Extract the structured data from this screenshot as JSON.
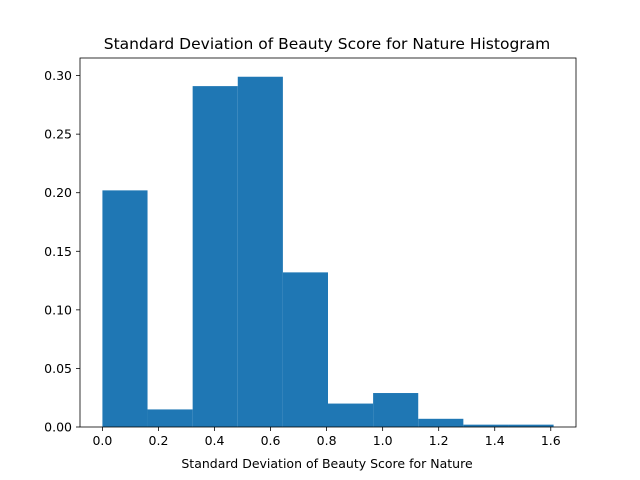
{
  "chart_data": {
    "type": "bar",
    "title": "Standard Deviation of Beauty Score for Nature Histogram",
    "xlabel": "Standard Deviation of Beauty Score for Nature",
    "ylabel": "",
    "xlim": [
      -0.08,
      1.69
    ],
    "ylim": [
      0.0,
      0.315
    ],
    "xticks": [
      "0.0",
      "0.2",
      "0.4",
      "0.6",
      "0.8",
      "1.0",
      "1.2",
      "1.4",
      "1.6"
    ],
    "yticks": [
      "0.00",
      "0.05",
      "0.10",
      "0.15",
      "0.20",
      "0.25",
      "0.30"
    ],
    "bins": [
      {
        "x0": 0.0,
        "x1": 0.161,
        "value": 0.202
      },
      {
        "x0": 0.161,
        "x1": 0.322,
        "value": 0.015
      },
      {
        "x0": 0.322,
        "x1": 0.483,
        "value": 0.291
      },
      {
        "x0": 0.483,
        "x1": 0.644,
        "value": 0.299
      },
      {
        "x0": 0.644,
        "x1": 0.805,
        "value": 0.132
      },
      {
        "x0": 0.805,
        "x1": 0.966,
        "value": 0.02
      },
      {
        "x0": 0.966,
        "x1": 1.127,
        "value": 0.029
      },
      {
        "x0": 1.127,
        "x1": 1.288,
        "value": 0.007
      },
      {
        "x0": 1.288,
        "x1": 1.449,
        "value": 0.002
      },
      {
        "x0": 1.449,
        "x1": 1.61,
        "value": 0.002
      }
    ],
    "grid": false,
    "legend": "none",
    "bar_color": "#1f77b4"
  }
}
